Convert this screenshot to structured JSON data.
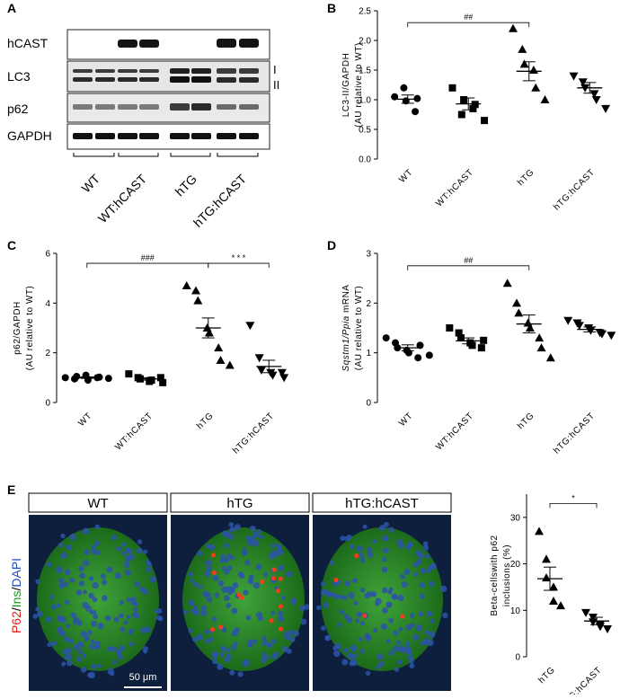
{
  "panels": {
    "A": "A",
    "B": "B",
    "C": "C",
    "D": "D",
    "E": "E"
  },
  "blot": {
    "rows": [
      "hCAST",
      "LC3",
      "p62",
      "GAPDH"
    ],
    "lc3_bands": [
      "I",
      "II"
    ],
    "groups": [
      "WT",
      "WT:hCAST",
      "hTG",
      "hTG:hCAST"
    ]
  },
  "micrographs": {
    "titles": [
      "WT",
      "hTG",
      "hTG:hCAST"
    ],
    "stain_parts": [
      {
        "text": "P62",
        "color": "#e0201b"
      },
      {
        "text": "/",
        "color": "#000000"
      },
      {
        "text": "Ins",
        "color": "#1a9a1a"
      },
      {
        "text": "/",
        "color": "#000000"
      },
      {
        "text": "DAPI",
        "color": "#1f4fbf"
      }
    ],
    "scale_bar": "50 μm"
  },
  "chart_data": [
    {
      "id": "B",
      "type": "scatter",
      "categories": [
        "WT",
        "WT:hCAST",
        "hTG",
        "hTG:hCAST"
      ],
      "markers": [
        "circle",
        "square",
        "triangle",
        "triangle-down"
      ],
      "ylabel_lines": [
        "LC3-II/GAPDH",
        "(AU relative to WT)"
      ],
      "ylim": [
        0,
        2.5
      ],
      "yticks": [
        0,
        0.5,
        1.0,
        1.5,
        2.0,
        2.5
      ],
      "ytick_labels": [
        "0.0",
        "0.5",
        "1.0",
        "1.5",
        "2.0",
        "2.5"
      ],
      "points": [
        [
          1.05,
          1.2,
          0.98,
          0.8,
          1.02
        ],
        [
          1.2,
          0.75,
          1.0,
          0.85,
          0.92,
          0.65
        ],
        [
          2.2,
          1.85,
          1.6,
          1.5,
          1.2,
          1.0
        ],
        [
          1.4,
          1.3,
          1.2,
          1.1,
          1.0,
          0.85
        ]
      ],
      "means": [
        1.01,
        0.93,
        1.48,
        1.2
      ],
      "sems": [
        0.07,
        0.1,
        0.16,
        0.09
      ],
      "annotations": [
        {
          "from": 0,
          "to": 2,
          "y": 2.3,
          "text": "##"
        }
      ]
    },
    {
      "id": "C",
      "type": "scatter",
      "categories": [
        "WT",
        "WT:hCAST",
        "hTG",
        "hTG:hCAST"
      ],
      "markers": [
        "circle",
        "square",
        "triangle",
        "triangle-down"
      ],
      "ylabel_lines": [
        "p62/GAPDH",
        "(AU relative to WT)"
      ],
      "ylim": [
        0,
        6
      ],
      "yticks": [
        0,
        2,
        4,
        6
      ],
      "ytick_labels": [
        "0",
        "2",
        "4",
        "6"
      ],
      "points": [
        [
          1.0,
          0.95,
          1.05,
          1.1,
          0.9,
          1.0,
          1.02,
          0.97
        ],
        [
          1.15,
          1.0,
          0.95,
          0.85,
          0.9,
          1.0,
          0.8
        ],
        [
          4.7,
          4.5,
          4.1,
          3.0,
          2.8,
          2.2,
          1.7,
          1.5
        ],
        [
          3.1,
          1.8,
          1.3,
          1.2,
          1.1,
          1.2,
          1.0
        ]
      ],
      "means": [
        1.0,
        0.95,
        3.0,
        1.45
      ],
      "sems": [
        0.03,
        0.05,
        0.4,
        0.25
      ],
      "annotations": [
        {
          "from": 0,
          "to": 2,
          "y": 5.6,
          "text": "###"
        },
        {
          "from": 2,
          "to": 3,
          "y": 5.6,
          "text": "* * *"
        }
      ]
    },
    {
      "id": "D",
      "type": "scatter",
      "categories": [
        "WT",
        "WT:hCAST",
        "hTG",
        "hTG:hCAST"
      ],
      "markers": [
        "circle",
        "square",
        "triangle",
        "triangle-down"
      ],
      "ylabel_lines": [
        "Sqstm1/Ppia mRNA",
        "(AU relative to WT)"
      ],
      "ylim": [
        0,
        3
      ],
      "yticks": [
        0,
        1,
        2,
        3
      ],
      "ytick_labels": [
        "0",
        "1",
        "2",
        "3"
      ],
      "points": [
        [
          1.3,
          1.2,
          1.1,
          1.05,
          1.0,
          0.9,
          1.15,
          0.95
        ],
        [
          1.5,
          1.4,
          1.3,
          1.2,
          1.15,
          1.1,
          1.25
        ],
        [
          2.4,
          2.0,
          1.8,
          1.6,
          1.5,
          1.3,
          1.1,
          0.9
        ],
        [
          1.65,
          1.6,
          1.55,
          1.5,
          1.45,
          1.4,
          1.38,
          1.35
        ]
      ],
      "means": [
        1.1,
        1.24,
        1.58,
        1.47
      ],
      "sems": [
        0.06,
        0.06,
        0.18,
        0.05
      ],
      "annotations": [
        {
          "from": 0,
          "to": 2,
          "y": 2.75,
          "text": "##"
        }
      ]
    },
    {
      "id": "E",
      "type": "scatter",
      "categories": [
        "hTG",
        "hTG:hCAST"
      ],
      "markers": [
        "triangle",
        "triangle-down"
      ],
      "ylabel_lines": [
        "Beta-cellswith p62",
        "inclusions (%)"
      ],
      "ylim": [
        0,
        35
      ],
      "yticks": [
        0,
        10,
        20,
        30
      ],
      "ytick_labels": [
        "0",
        "10",
        "20",
        "30"
      ],
      "points": [
        [
          27,
          21,
          17,
          15,
          12,
          11
        ],
        [
          9.5,
          8.5,
          7.5,
          7,
          6.5,
          6
        ]
      ],
      "means": [
        16.8,
        7.7
      ],
      "sems": [
        2.5,
        0.8
      ],
      "annotations": [
        {
          "from": 0,
          "to": 1,
          "y": 33,
          "text": "*"
        }
      ]
    }
  ]
}
